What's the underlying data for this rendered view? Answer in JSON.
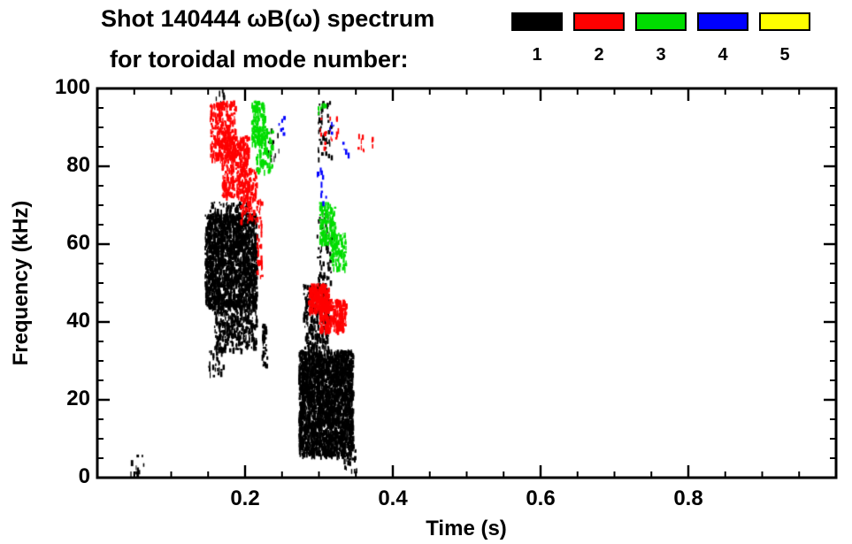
{
  "title": {
    "line1": "Shot 140444 ωB(ω) spectrum",
    "line2": "for toroidal mode number:"
  },
  "legend": {
    "entries": [
      {
        "label": "1",
        "color": "#000000"
      },
      {
        "label": "2",
        "color": "#ff0000"
      },
      {
        "label": "3",
        "color": "#00dd00"
      },
      {
        "label": "4",
        "color": "#0000ff"
      },
      {
        "label": "5",
        "color": "#ffff00"
      }
    ]
  },
  "chart_data": {
    "type": "scatter",
    "title": "Shot 140444 ωB(ω) spectrum for toroidal mode number: 1-5",
    "xlabel": "Time (s)",
    "ylabel": "Frequency (kHz)",
    "xlim": [
      0,
      1.0
    ],
    "ylim": [
      0,
      100
    ],
    "grid": false,
    "legend_position": "top-right",
    "xticks": {
      "values": [
        0.2,
        0.4,
        0.6,
        0.8
      ],
      "labels": [
        "0.2",
        "0.4",
        "0.6",
        "0.8"
      ],
      "minor_step": 0.05
    },
    "yticks": {
      "values": [
        0,
        20,
        40,
        60,
        80,
        100
      ],
      "labels": [
        "0",
        "20",
        "40",
        "60",
        "80",
        "100"
      ],
      "minor_step": 5
    },
    "mark": {
      "w": [
        1,
        3
      ],
      "h": [
        2,
        7
      ]
    },
    "series": [
      {
        "name": "toroidal mode n=1",
        "label": "1",
        "color": "#000000",
        "clusters": [
          {
            "t": [
              0.044,
              0.062
            ],
            "f": [
              1,
              6
            ],
            "n": 10
          },
          {
            "t": [
              0.145,
              0.215
            ],
            "f": [
              44,
              68
            ],
            "n": 1700
          },
          {
            "t": [
              0.15,
              0.205
            ],
            "f": [
              66,
              71
            ],
            "n": 90
          },
          {
            "t": [
              0.158,
              0.215
            ],
            "f": [
              33,
              46
            ],
            "n": 380
          },
          {
            "t": [
              0.15,
              0.17
            ],
            "f": [
              26,
              34
            ],
            "n": 28
          },
          {
            "t": [
              0.16,
              0.172
            ],
            "f": [
              96,
              100
            ],
            "n": 10
          },
          {
            "t": [
              0.222,
              0.229
            ],
            "f": [
              29,
              40
            ],
            "n": 35
          },
          {
            "t": [
              0.228,
              0.246
            ],
            "f": [
              82,
              90
            ],
            "n": 14
          },
          {
            "t": [
              0.272,
              0.345
            ],
            "f": [
              6,
              33
            ],
            "n": 2400
          },
          {
            "t": [
              0.278,
              0.312
            ],
            "f": [
              33,
              50
            ],
            "n": 260
          },
          {
            "t": [
              0.296,
              0.316
            ],
            "f": [
              50,
              68
            ],
            "n": 70
          },
          {
            "t": [
              0.298,
              0.316
            ],
            "f": [
              82,
              97
            ],
            "n": 45
          },
          {
            "t": [
              0.333,
              0.352
            ],
            "f": [
              1,
              8
            ],
            "n": 22
          }
        ]
      },
      {
        "name": "toroidal mode n=2",
        "label": "2",
        "color": "#ff0000",
        "clusters": [
          {
            "t": [
              0.152,
              0.186
            ],
            "f": [
              82,
              97
            ],
            "n": 280
          },
          {
            "t": [
              0.168,
              0.205
            ],
            "f": [
              72,
              88
            ],
            "n": 320
          },
          {
            "t": [
              0.193,
              0.216
            ],
            "f": [
              66,
              80
            ],
            "n": 130
          },
          {
            "t": [
              0.215,
              0.222
            ],
            "f": [
              52,
              72
            ],
            "n": 45
          },
          {
            "t": [
              0.285,
              0.312
            ],
            "f": [
              43,
              50
            ],
            "n": 260
          },
          {
            "t": [
              0.3,
              0.336
            ],
            "f": [
              38,
              46
            ],
            "n": 260
          },
          {
            "t": [
              0.3,
              0.326
            ],
            "f": [
              85,
              93
            ],
            "n": 16
          },
          {
            "t": [
              0.352,
              0.372
            ],
            "f": [
              84,
              90
            ],
            "n": 10
          }
        ]
      },
      {
        "name": "toroidal mode n=3",
        "label": "3",
        "color": "#00dd00",
        "clusters": [
          {
            "t": [
              0.208,
              0.226
            ],
            "f": [
              86,
              97
            ],
            "n": 130
          },
          {
            "t": [
              0.214,
              0.236
            ],
            "f": [
              79,
              90
            ],
            "n": 90
          },
          {
            "t": [
              0.298,
              0.31
            ],
            "f": [
              93,
              97
            ],
            "n": 8
          },
          {
            "t": [
              0.3,
              0.321
            ],
            "f": [
              60,
              71
            ],
            "n": 140
          },
          {
            "t": [
              0.314,
              0.336
            ],
            "f": [
              54,
              63
            ],
            "n": 100
          }
        ]
      },
      {
        "name": "toroidal mode n=4",
        "label": "4",
        "color": "#0000ff",
        "clusters": [
          {
            "t": [
              0.243,
              0.252
            ],
            "f": [
              88,
              93
            ],
            "n": 6
          },
          {
            "t": [
              0.297,
              0.306
            ],
            "f": [
              76,
              81
            ],
            "n": 6
          },
          {
            "t": [
              0.313,
              0.321
            ],
            "f": [
              88,
              92
            ],
            "n": 5
          },
          {
            "t": [
              0.329,
              0.34
            ],
            "f": [
              83,
              87
            ],
            "n": 4
          },
          {
            "t": [
              0.3,
              0.31
            ],
            "f": [
              70,
              74
            ],
            "n": 4
          }
        ]
      },
      {
        "name": "toroidal mode n=5",
        "label": "5",
        "color": "#ffff00",
        "clusters": []
      }
    ]
  }
}
